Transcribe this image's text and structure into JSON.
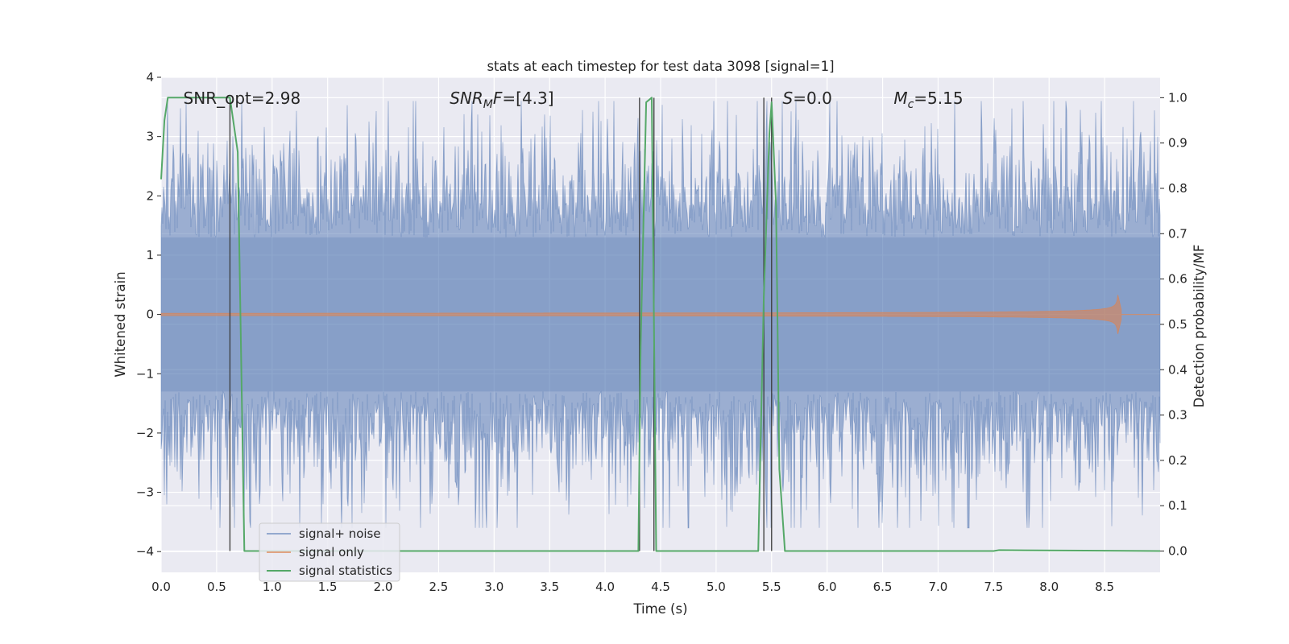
{
  "chart_data": {
    "type": "line",
    "title": "stats at each timestep for test data 3098 [signal=1]",
    "xlabel": "Time (s)",
    "ylabel": "Whitened strain",
    "y2label": "Detection probability/MF",
    "xlim": [
      0,
      9.0
    ],
    "ylim": [
      -4.35,
      4.0
    ],
    "y2lim": [
      -0.047,
      1.045
    ],
    "x_ticks": [
      0.0,
      0.5,
      1.0,
      1.5,
      2.0,
      2.5,
      3.0,
      3.5,
      4.0,
      4.5,
      5.0,
      5.5,
      6.0,
      6.5,
      7.0,
      7.5,
      8.0,
      8.5
    ],
    "y_ticks": [
      4,
      3,
      2,
      1,
      0,
      -1,
      -2,
      -3,
      -4
    ],
    "y2_ticks": [
      1.0,
      0.9,
      0.8,
      0.7,
      0.6,
      0.5,
      0.4,
      0.3,
      0.2,
      0.1,
      0.0
    ],
    "grid": true,
    "legend_position": "bottom-left",
    "annotations": [
      {
        "text": "SNR_opt=2.98",
        "x": 0.2,
        "y": 3.65
      },
      {
        "text": "SNR_MF=[4.3]",
        "x": 2.6,
        "y": 3.65
      },
      {
        "text": "S=0.0",
        "x": 5.6,
        "y": 3.65
      },
      {
        "text": "M_c=5.15",
        "x": 6.6,
        "y": 3.65
      }
    ],
    "vertical_lines": {
      "x": [
        0.62,
        4.31,
        4.44,
        5.43,
        5.5
      ],
      "prob_range": [
        0.0,
        1.0
      ]
    },
    "series": [
      {
        "name": "signal+ noise",
        "color": "#4c72b0",
        "style": "noise",
        "x_range": [
          0,
          9.0
        ],
        "typical_amplitude": 2.0,
        "max_abs": 3.6
      },
      {
        "name": "signal only",
        "color": "#dd8452",
        "style": "chirp",
        "x_range": [
          0,
          8.65
        ],
        "peak_amplitude": 0.33,
        "merger_time": 8.62
      },
      {
        "name": "signal statistics",
        "color": "#55a868",
        "axis": "right",
        "x": [
          0.0,
          0.03,
          0.06,
          0.1,
          0.5,
          0.62,
          0.69,
          0.75,
          4.3,
          4.32,
          4.37,
          4.42,
          4.46,
          5.38,
          5.43,
          5.48,
          5.5,
          5.54,
          5.57,
          5.62,
          5.72,
          7.5,
          7.55,
          9.0
        ],
        "y": [
          0.82,
          0.95,
          1.0,
          1.0,
          1.0,
          1.0,
          0.88,
          0.0,
          0.0,
          0.45,
          0.99,
          1.0,
          0.0,
          0.0,
          0.56,
          0.92,
          0.99,
          0.76,
          0.18,
          0.0,
          0.0,
          0.0,
          0.002,
          0.0
        ]
      }
    ]
  }
}
